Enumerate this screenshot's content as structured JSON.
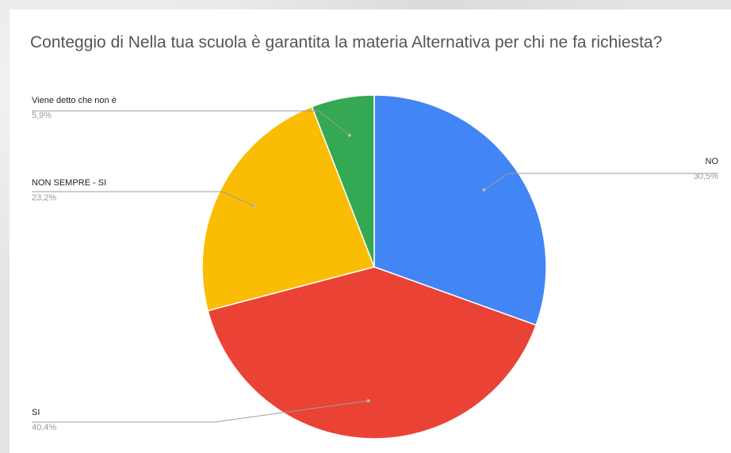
{
  "chart_data": {
    "type": "pie",
    "title": "Conteggio di Nella tua scuola è garantita la materia Alternativa per chi ne fa richiesta?",
    "slices": [
      {
        "label": "NO",
        "percent_label": "30,5%",
        "value": 30.5,
        "color": "#4285f4"
      },
      {
        "label": "SI",
        "percent_label": "40,4%",
        "value": 40.4,
        "color": "#ea4335"
      },
      {
        "label": "NON SEMPRE - SI",
        "percent_label": "23,2%",
        "value": 23.2,
        "color": "#fbbc04"
      },
      {
        "label": "Viene detto che non è",
        "percent_label": "5,9%",
        "value": 5.9,
        "color": "#34a853"
      }
    ],
    "start_angle_deg": 0,
    "direction": "clockwise",
    "legend": "none"
  }
}
